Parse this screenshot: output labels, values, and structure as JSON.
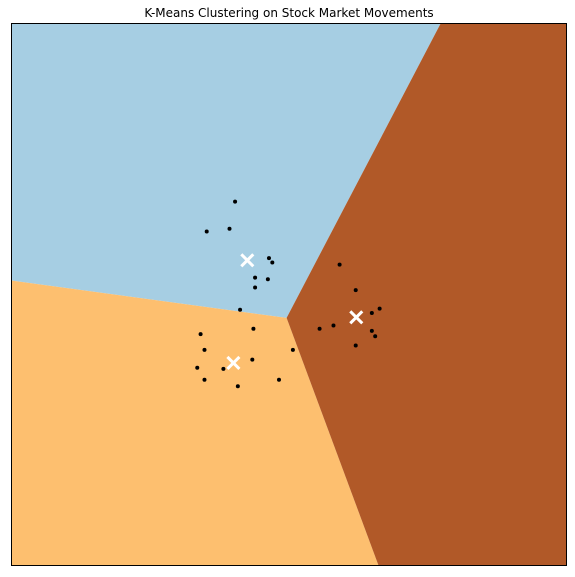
{
  "chart_data": {
    "type": "scatter",
    "title": "K-Means Clustering on Stock Market Movements",
    "xlabel": "",
    "ylabel": "",
    "xlim": [
      0,
      100
    ],
    "ylim": [
      0,
      100
    ],
    "grid": false,
    "axis_ticks": false,
    "region_colors": [
      "#a6cee3",
      "#fdbf6f",
      "#b15928"
    ],
    "point_color": "#000000",
    "centroid_color": "#ffffff",
    "centroid_marker": "x",
    "centroids": [
      {
        "x": 42.5,
        "y": 56.3
      },
      {
        "x": 40.0,
        "y": 37.4
      },
      {
        "x": 62.1,
        "y": 45.8
      }
    ],
    "points": [
      {
        "x": 40.3,
        "y": 67.1
      },
      {
        "x": 35.2,
        "y": 61.6
      },
      {
        "x": 39.3,
        "y": 62.1
      },
      {
        "x": 46.4,
        "y": 56.7
      },
      {
        "x": 47.0,
        "y": 55.9
      },
      {
        "x": 43.9,
        "y": 53.1
      },
      {
        "x": 43.9,
        "y": 51.3
      },
      {
        "x": 46.2,
        "y": 52.8
      },
      {
        "x": 41.2,
        "y": 47.2
      },
      {
        "x": 34.1,
        "y": 42.7
      },
      {
        "x": 43.6,
        "y": 43.7
      },
      {
        "x": 34.8,
        "y": 39.8
      },
      {
        "x": 50.7,
        "y": 39.8
      },
      {
        "x": 33.5,
        "y": 36.5
      },
      {
        "x": 38.2,
        "y": 36.3
      },
      {
        "x": 43.4,
        "y": 38.0
      },
      {
        "x": 34.8,
        "y": 34.3
      },
      {
        "x": 48.2,
        "y": 34.3
      },
      {
        "x": 40.8,
        "y": 33.1
      },
      {
        "x": 59.1,
        "y": 55.5
      },
      {
        "x": 62.0,
        "y": 50.8
      },
      {
        "x": 66.3,
        "y": 47.4
      },
      {
        "x": 64.9,
        "y": 46.6
      },
      {
        "x": 58.0,
        "y": 44.3
      },
      {
        "x": 55.5,
        "y": 43.7
      },
      {
        "x": 64.9,
        "y": 43.3
      },
      {
        "x": 65.5,
        "y": 42.3
      },
      {
        "x": 62.0,
        "y": 40.6
      }
    ]
  }
}
